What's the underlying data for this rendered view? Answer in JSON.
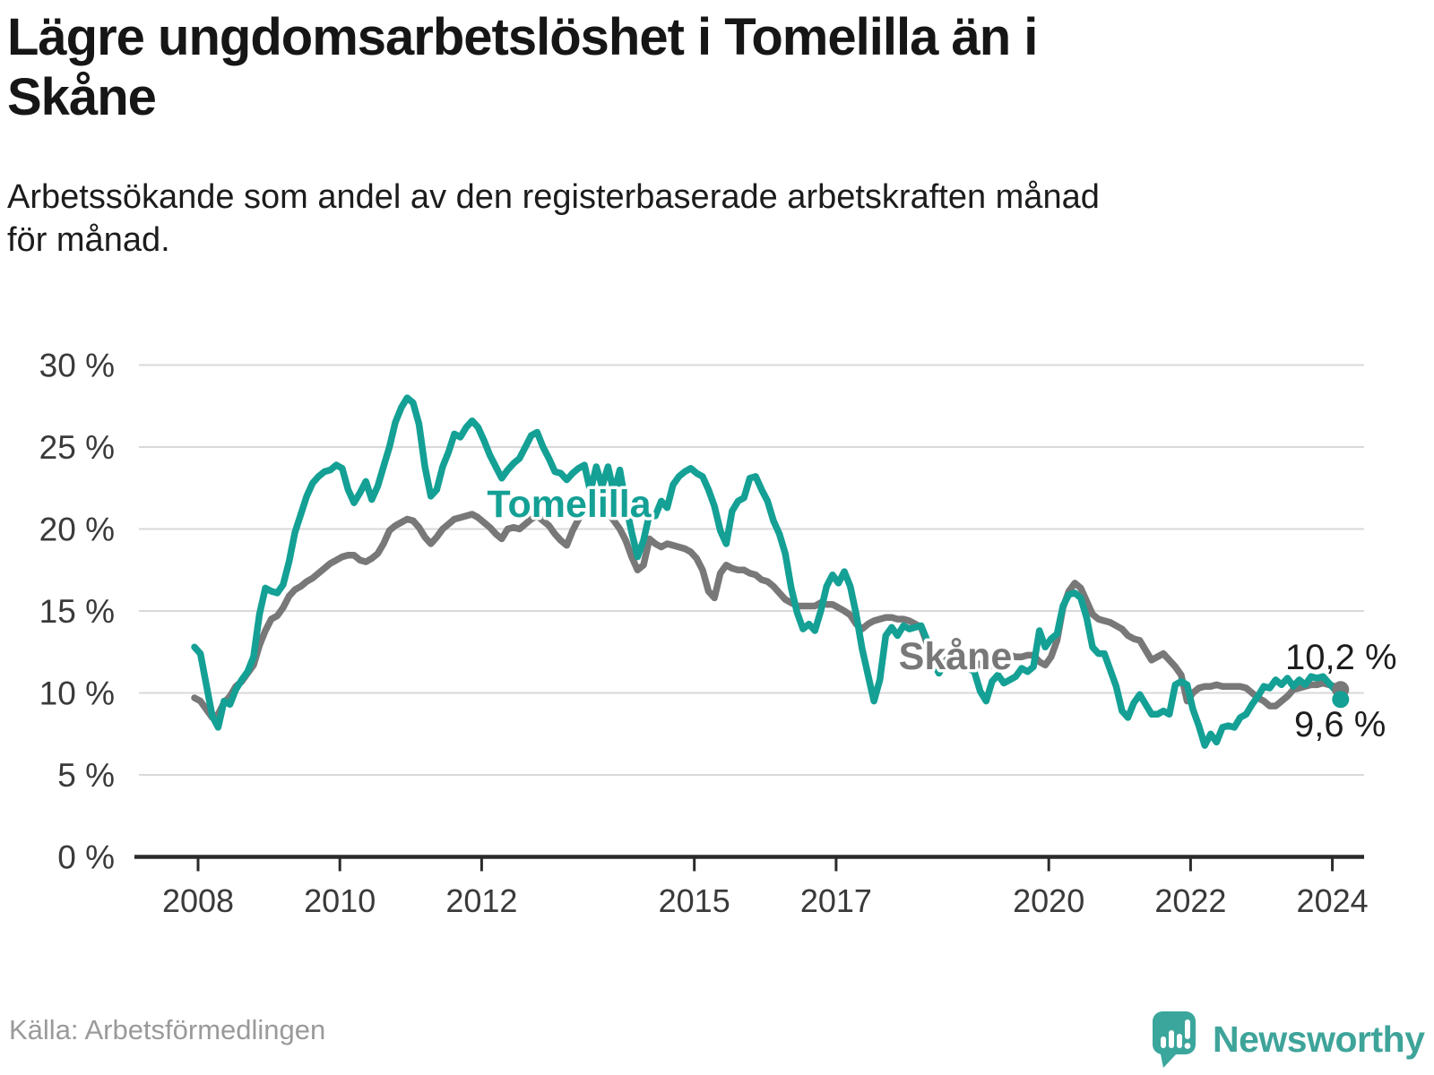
{
  "header": {
    "title_lines": [
      "Lägre ungdomsarbetslöshet i Tomelilla än i",
      "Skåne"
    ],
    "subtitle_lines": [
      "Arbetssökande som andel av den registerbaserade arbetskraften månad",
      "för månad."
    ]
  },
  "footer": {
    "source": "Källa: Arbetsförmedlingen",
    "logo_text": "Newsworthy"
  },
  "colors": {
    "accent_teal": "#14a095",
    "line_gray": "#787878",
    "grid": "#d9d9d9",
    "axis": "#2b2b2b",
    "axis_text": "#3a3a3a",
    "end_label_text": "#1d1d1d",
    "logo_teal": "#3ba69c"
  },
  "chart_data": {
    "type": "line",
    "unit": "%",
    "frequency": "monthly",
    "x_start": "2008-01",
    "x_end": "2024-03",
    "ylim": [
      0,
      30
    ],
    "grid": "horizontal",
    "legend_position": "inline-labels",
    "x_ticks": [
      2008,
      2010,
      2012,
      2015,
      2017,
      2020,
      2022,
      2024
    ],
    "y_axis": {
      "ticks": [
        0,
        5,
        10,
        15,
        20,
        25,
        30
      ],
      "labels": [
        "0 %",
        "5 %",
        "10 %",
        "15 %",
        "20 %",
        "25 %",
        "30 %"
      ]
    },
    "series": [
      {
        "name": "Tomelilla",
        "key": "tomelilla",
        "color": "#14a095",
        "end_label": "9,6 %",
        "last_value": 9.6,
        "values": [
          12.8,
          12.4,
          10.5,
          8.6,
          7.9,
          9.5,
          9.3,
          10.2,
          10.8,
          11.3,
          12.2,
          14.8,
          16.4,
          16.2,
          16.1,
          16.6,
          18.0,
          19.8,
          20.9,
          22.0,
          22.8,
          23.2,
          23.5,
          23.6,
          23.9,
          23.7,
          22.4,
          21.6,
          22.2,
          22.9,
          21.8,
          22.6,
          23.8,
          25.0,
          26.5,
          27.4,
          28.0,
          27.7,
          26.4,
          23.8,
          22.0,
          22.4,
          23.8,
          24.7,
          25.8,
          25.6,
          26.2,
          26.6,
          26.2,
          25.4,
          24.5,
          23.8,
          23.1,
          23.6,
          24.0,
          24.3,
          25.0,
          25.7,
          25.9,
          25.0,
          24.3,
          23.5,
          23.4,
          23.0,
          23.4,
          23.7,
          23.9,
          22.3,
          23.8,
          22.6,
          23.8,
          22.2,
          23.6,
          21.5,
          19.8,
          18.3,
          19.3,
          20.9,
          20.8,
          21.7,
          21.3,
          22.7,
          23.2,
          23.5,
          23.7,
          23.4,
          23.2,
          22.4,
          21.4,
          19.9,
          19.1,
          21.1,
          21.7,
          21.9,
          23.1,
          23.2,
          22.4,
          21.7,
          20.5,
          19.7,
          18.5,
          16.4,
          14.9,
          13.9,
          14.2,
          13.8,
          15.0,
          16.5,
          17.2,
          16.7,
          17.4,
          16.5,
          14.8,
          12.7,
          11.1,
          9.5,
          10.8,
          13.5,
          14.0,
          13.5,
          14.1,
          13.9,
          14.0,
          14.1,
          13.2,
          11.9,
          11.2,
          11.8,
          12.2,
          12.0,
          11.8,
          11.5,
          11.3,
          10.1,
          9.5,
          10.7,
          11.1,
          10.6,
          10.8,
          11.0,
          11.5,
          11.3,
          11.6,
          13.8,
          12.8,
          13.3,
          13.6,
          15.3,
          16.0,
          16.1,
          15.8,
          14.6,
          12.8,
          12.4,
          12.4,
          11.4,
          10.4,
          8.9,
          8.5,
          9.4,
          9.9,
          9.3,
          8.7,
          8.7,
          8.9,
          8.7,
          10.5,
          10.7,
          10.5,
          9.0,
          8.0,
          6.8,
          7.5,
          7.0,
          7.9,
          8.0,
          7.9,
          8.5,
          8.7,
          9.3,
          9.8,
          10.4,
          10.3,
          10.8,
          10.5,
          10.9,
          10.4,
          10.8,
          10.5,
          11.0,
          10.9,
          11.0,
          10.6,
          10.2,
          9.6
        ]
      },
      {
        "name": "Skåne",
        "key": "skane",
        "color": "#787878",
        "end_label": "10,2 %",
        "last_value": 10.2,
        "values": [
          9.7,
          9.5,
          9.0,
          8.5,
          8.7,
          9.4,
          9.8,
          10.4,
          10.7,
          11.2,
          11.7,
          12.9,
          13.8,
          14.5,
          14.7,
          15.2,
          15.9,
          16.3,
          16.5,
          16.8,
          17.0,
          17.3,
          17.6,
          17.9,
          18.1,
          18.3,
          18.4,
          18.4,
          18.1,
          18.0,
          18.2,
          18.5,
          19.1,
          19.9,
          20.2,
          20.4,
          20.6,
          20.5,
          20.1,
          19.5,
          19.1,
          19.5,
          20.0,
          20.3,
          20.6,
          20.7,
          20.8,
          20.9,
          20.7,
          20.4,
          20.1,
          19.7,
          19.4,
          20.0,
          20.1,
          20.0,
          20.3,
          20.6,
          20.8,
          20.5,
          20.2,
          19.7,
          19.3,
          19.0,
          19.9,
          20.6,
          21.2,
          21.5,
          21.1,
          21.4,
          21.0,
          20.5,
          20.0,
          19.3,
          18.3,
          17.5,
          17.8,
          19.4,
          19.1,
          18.9,
          19.1,
          19.0,
          18.9,
          18.8,
          18.6,
          18.2,
          17.5,
          16.2,
          15.8,
          17.3,
          17.8,
          17.6,
          17.5,
          17.5,
          17.3,
          17.2,
          16.9,
          16.8,
          16.5,
          16.1,
          15.7,
          15.5,
          15.3,
          15.3,
          15.3,
          15.3,
          15.5,
          15.4,
          15.4,
          15.2,
          15.0,
          14.75,
          14.2,
          13.9,
          14.2,
          14.4,
          14.5,
          14.6,
          14.6,
          14.5,
          14.5,
          14.4,
          14.2,
          14.0,
          13.0,
          11.8,
          11.3,
          11.9,
          12.3,
          12.5,
          12.3,
          12.1,
          11.9,
          11.7,
          11.5,
          11.7,
          12.0,
          12.4,
          12.3,
          12.2,
          12.2,
          12.3,
          12.3,
          11.9,
          11.7,
          12.2,
          13.2,
          15.2,
          16.2,
          16.7,
          16.4,
          15.6,
          14.8,
          14.5,
          14.4,
          14.3,
          14.1,
          13.9,
          13.5,
          13.3,
          13.2,
          12.6,
          12.0,
          12.2,
          12.4,
          12.0,
          11.6,
          11.1,
          9.5,
          10.0,
          10.3,
          10.4,
          10.4,
          10.5,
          10.4,
          10.4,
          10.4,
          10.4,
          10.3,
          10.0,
          9.7,
          9.5,
          9.2,
          9.2,
          9.5,
          9.8,
          10.2,
          10.3,
          10.4,
          10.5,
          10.5,
          10.6,
          10.5,
          10.4,
          10.2
        ]
      }
    ]
  }
}
